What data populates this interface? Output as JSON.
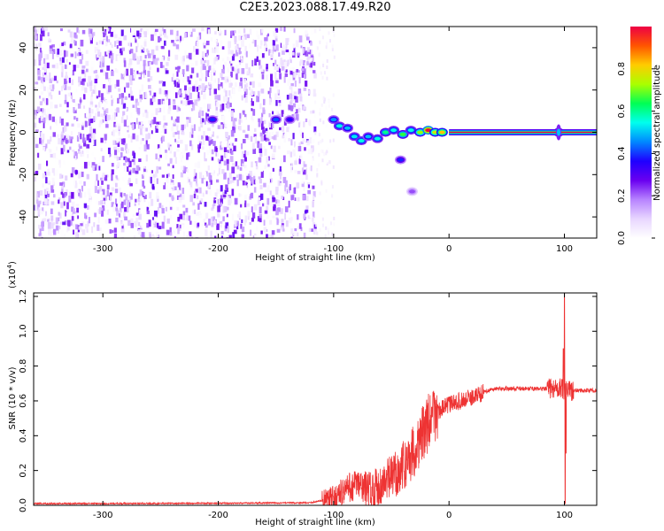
{
  "page": {
    "title": "C2E3.2023.088.17.49.R20"
  },
  "colors": {
    "colormap": [
      "#ffffff",
      "#e8d6ff",
      "#b783ff",
      "#6a00f0",
      "#1f00ff",
      "#0088ff",
      "#00ffee",
      "#00ff55",
      "#aaff00",
      "#ffcc00",
      "#ff5500",
      "#ee0044"
    ],
    "snr_line": "#ee3333",
    "frame": "#000000"
  },
  "chart_data": [
    {
      "type": "heatmap",
      "xlabel": "Height of straight line (km)",
      "ylabel": "Frequency (Hz)",
      "xlim": [
        -360,
        128
      ],
      "ylim": [
        -50,
        50
      ],
      "xticks": [
        -300,
        -200,
        -100,
        0,
        100
      ],
      "yticks": [
        -40,
        -20,
        0,
        20,
        40
      ],
      "colorbar": {
        "label": "Normalized spectral amplitude",
        "range": [
          0.0,
          1.0
        ],
        "ticks": [
          "0.0",
          "0.2",
          "0.4",
          "0.6",
          "0.8"
        ]
      },
      "regions": {
        "noise_field_extent_km": [
          -360,
          -117
        ],
        "sparse_noise_extent_km": [
          -117,
          -100
        ],
        "line_start_km": 0,
        "line_frequency_hz": 0,
        "peak_feature_km": 95
      },
      "bright_spots": [
        {
          "x": -205,
          "y": 6,
          "a": 0.35
        },
        {
          "x": -150,
          "y": 6,
          "a": 0.38
        },
        {
          "x": -138,
          "y": 6,
          "a": 0.32
        },
        {
          "x": -100,
          "y": 6,
          "a": 0.42
        },
        {
          "x": -95,
          "y": 3,
          "a": 0.5
        },
        {
          "x": -88,
          "y": 2,
          "a": 0.45
        },
        {
          "x": -82,
          "y": -2,
          "a": 0.48
        },
        {
          "x": -76,
          "y": -4,
          "a": 0.5
        },
        {
          "x": -70,
          "y": -2,
          "a": 0.45
        },
        {
          "x": -62,
          "y": -3,
          "a": 0.5
        },
        {
          "x": -55,
          "y": 0,
          "a": 0.55
        },
        {
          "x": -48,
          "y": 1,
          "a": 0.5
        },
        {
          "x": -40,
          "y": -1,
          "a": 0.6
        },
        {
          "x": -33,
          "y": 1,
          "a": 0.5
        },
        {
          "x": -25,
          "y": 0,
          "a": 0.65
        },
        {
          "x": -18,
          "y": 1,
          "a": 0.9
        },
        {
          "x": -12,
          "y": 0,
          "a": 0.7
        },
        {
          "x": -6,
          "y": 0,
          "a": 0.75
        },
        {
          "x": -42,
          "y": -13,
          "a": 0.35
        },
        {
          "x": -32,
          "y": -28,
          "a": 0.2
        },
        {
          "x": 95,
          "y": 0,
          "a": 0.6
        }
      ]
    },
    {
      "type": "line",
      "xlabel": "Height of straight line (km)",
      "ylabel": "SNR (10 * v/v)",
      "y_multiplier": "(x10",
      "y_multiplier_exp": "4",
      "y_multiplier_close": ")",
      "xlim": [
        -360,
        128
      ],
      "ylim": [
        0.0,
        1.22
      ],
      "xticks": [
        -300,
        -200,
        -100,
        0,
        100
      ],
      "yticks": [
        "0.0",
        "0.2",
        "0.4",
        "0.6",
        "0.8",
        "1.0",
        "1.2"
      ],
      "series": [
        {
          "x": [
            -360,
            -300,
            -200,
            -120,
            -100,
            -90,
            -80,
            -70,
            -60,
            -50,
            -40,
            -30,
            -20,
            -10,
            0,
            10,
            20,
            30,
            40,
            60,
            80,
            90,
            95,
            100,
            105,
            110,
            128
          ],
          "y": [
            0.01,
            0.01,
            0.012,
            0.015,
            0.04,
            0.09,
            0.12,
            0.09,
            0.11,
            0.16,
            0.22,
            0.32,
            0.45,
            0.54,
            0.58,
            0.6,
            0.62,
            0.65,
            0.67,
            0.67,
            0.67,
            0.67,
            0.68,
            0.66,
            0.66,
            0.66,
            0.66
          ]
        }
      ]
    }
  ]
}
